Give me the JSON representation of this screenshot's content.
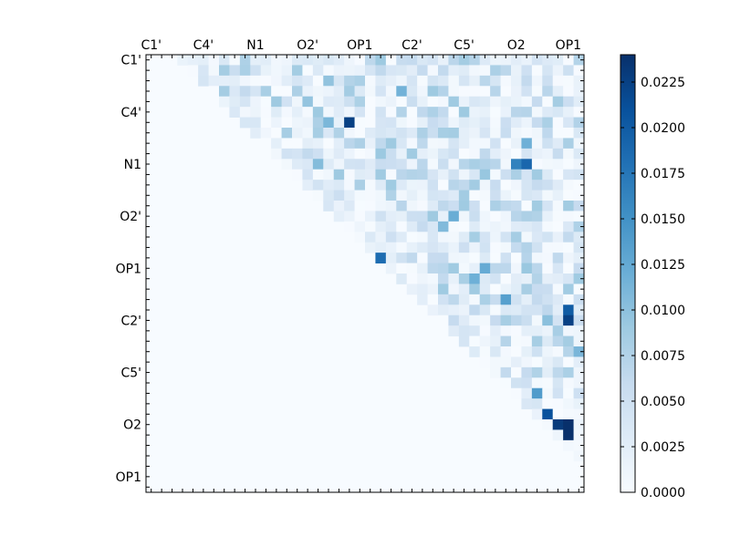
{
  "chart_data": {
    "type": "heatmap",
    "title": "",
    "xlabel": "",
    "ylabel": "",
    "grid": false,
    "rows": 42,
    "cols": 42,
    "upper_triangular": true,
    "colormap": "Blues",
    "x_tick_labels": [
      "C1'",
      "C4'",
      "N1",
      "O2'",
      "OP1",
      "C2'",
      "C5'",
      "O2",
      "OP1"
    ],
    "y_tick_labels": [
      "C1'",
      "C4'",
      "N1",
      "O2'",
      "OP1",
      "C2'",
      "C5'",
      "O2",
      "OP1"
    ],
    "label_interval": 5,
    "colorbar": {
      "min": 0.0,
      "max": 0.024,
      "tick_labels": [
        "0.0000",
        "0.0025",
        "0.0050",
        "0.0075",
        "0.0100",
        "0.0125",
        "0.0150",
        "0.0175",
        "0.0200",
        "0.0225"
      ],
      "tick_values": [
        0.0,
        0.0025,
        0.005,
        0.0075,
        0.01,
        0.0125,
        0.015,
        0.0175,
        0.02,
        0.0225
      ],
      "position": "right"
    },
    "highlighted_values": [
      {
        "row": 3,
        "col": 7,
        "value": 0.0085
      },
      {
        "row": 5,
        "col": 7,
        "value": 0.0115
      },
      {
        "row": 6,
        "col": 8,
        "value": 0.0175
      },
      {
        "row": 6,
        "col": 19,
        "value": 0.0225
      },
      {
        "row": 18,
        "col": 18,
        "value": 0.0178
      },
      {
        "row": 19,
        "col": 20,
        "value": 0.0185
      },
      {
        "row": 19,
        "col": 21,
        "value": 0.0185
      },
      {
        "row": 19,
        "col": 22,
        "value": 0.0185
      },
      {
        "row": 10,
        "col": 36,
        "value": 0.019
      },
      {
        "row": 10,
        "col": 35,
        "value": 0.0165
      },
      {
        "row": 24,
        "col": 40,
        "value": 0.02
      },
      {
        "row": 25,
        "col": 40,
        "value": 0.0225
      },
      {
        "row": 35,
        "col": 40,
        "value": 0.024
      },
      {
        "row": 35,
        "col": 39,
        "value": 0.023
      },
      {
        "row": 36,
        "col": 40,
        "value": 0.024
      },
      {
        "row": 34,
        "col": 38,
        "value": 0.021
      },
      {
        "row": 34,
        "col": 36,
        "value": 0.018
      },
      {
        "row": 35,
        "col": 36,
        "value": 0.016
      },
      {
        "row": 32,
        "col": 37,
        "value": 0.014
      },
      {
        "row": 23,
        "col": 34,
        "value": 0.0135
      }
    ],
    "value_seed": 20240611
  }
}
